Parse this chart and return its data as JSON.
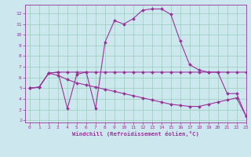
{
  "xlabel": "Windchill (Refroidissement éolien,°C)",
  "background_color": "#cce8ee",
  "grid_color": "#99ccbb",
  "line_color": "#993399",
  "xlim": [
    -0.5,
    23
  ],
  "ylim": [
    1.8,
    12.8
  ],
  "xticks": [
    0,
    1,
    2,
    3,
    4,
    5,
    6,
    7,
    8,
    9,
    10,
    11,
    12,
    13,
    14,
    15,
    16,
    17,
    18,
    19,
    20,
    21,
    22,
    23
  ],
  "yticks": [
    2,
    3,
    4,
    5,
    6,
    7,
    8,
    9,
    10,
    11,
    12
  ],
  "series1_x": [
    0,
    1,
    2,
    3,
    4,
    5,
    6,
    7,
    8,
    9,
    10,
    11,
    12,
    13,
    14,
    15,
    16,
    17,
    18,
    19,
    20,
    21,
    22,
    23
  ],
  "series1_y": [
    5.0,
    5.1,
    6.4,
    6.5,
    3.1,
    6.3,
    6.5,
    3.1,
    9.3,
    11.3,
    11.0,
    11.5,
    12.3,
    12.4,
    12.4,
    11.9,
    9.4,
    7.2,
    6.7,
    6.5,
    6.5,
    4.5,
    4.5,
    2.4
  ],
  "series2_x": [
    0,
    1,
    2,
    3,
    4,
    5,
    6,
    7,
    8,
    9,
    10,
    11,
    12,
    13,
    14,
    15,
    16,
    17,
    18,
    19,
    20,
    21,
    22,
    23
  ],
  "series2_y": [
    5.0,
    5.1,
    6.4,
    6.5,
    6.5,
    6.5,
    6.5,
    6.5,
    6.5,
    6.5,
    6.5,
    6.5,
    6.5,
    6.5,
    6.5,
    6.5,
    6.5,
    6.5,
    6.5,
    6.5,
    6.5,
    6.5,
    6.5,
    6.5
  ],
  "series3_x": [
    0,
    1,
    2,
    3,
    4,
    5,
    6,
    7,
    8,
    9,
    10,
    11,
    12,
    13,
    14,
    15,
    16,
    17,
    18,
    19,
    20,
    21,
    22,
    23
  ],
  "series3_y": [
    5.0,
    5.1,
    6.4,
    6.2,
    5.8,
    5.5,
    5.3,
    5.1,
    4.9,
    4.7,
    4.5,
    4.3,
    4.1,
    3.9,
    3.7,
    3.5,
    3.4,
    3.3,
    3.3,
    3.5,
    3.7,
    3.9,
    4.1,
    2.4
  ]
}
